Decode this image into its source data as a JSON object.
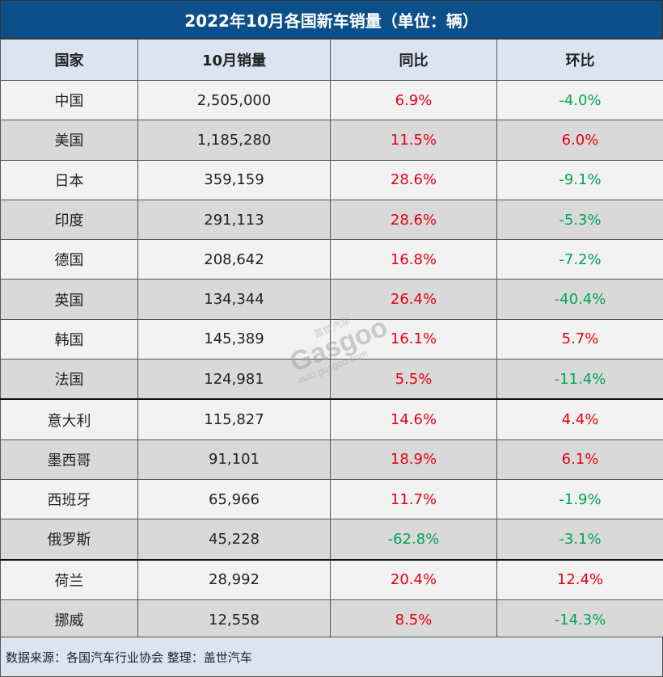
{
  "title": "2022年10月各国新车销量（单位：辆）",
  "footer": "数据来源：各国汽车行业协会 整理：盖世汽车",
  "watermark": {
    "cn": "盖世汽车",
    "logo": "Gasgoo",
    "url": "auto.gasgoo.com"
  },
  "colors": {
    "header_bg": "#0b508a",
    "subheader_bg": "#dbe5f1",
    "positive": "#e60012",
    "negative": "#00a651",
    "row_light": "#f2f2f2",
    "row_dark": "#d9d9d9"
  },
  "chart_data": {
    "type": "table",
    "title": "2022年10月各国新车销量（单位：辆）",
    "columns": [
      "国家",
      "10月销量",
      "同比",
      "环比"
    ],
    "rows": [
      [
        "中国",
        "2,505,000",
        "6.9%",
        "-4.0%"
      ],
      [
        "美国",
        "1,185,280",
        "11.5%",
        "6.0%"
      ],
      [
        "日本",
        "359,159",
        "28.6%",
        "-9.1%"
      ],
      [
        "印度",
        "291,113",
        "28.6%",
        "-5.3%"
      ],
      [
        "德国",
        "208,642",
        "16.8%",
        "-7.2%"
      ],
      [
        "英国",
        "134,344",
        "26.4%",
        "-40.4%"
      ],
      [
        "韩国",
        "145,389",
        "16.1%",
        "5.7%"
      ],
      [
        "法国",
        "124,981",
        "5.5%",
        "-11.4%"
      ],
      [
        "意大利",
        "115,827",
        "14.6%",
        "4.4%"
      ],
      [
        "墨西哥",
        "91,101",
        "18.9%",
        "6.1%"
      ],
      [
        "西班牙",
        "65,966",
        "11.7%",
        "-1.9%"
      ],
      [
        "俄罗斯",
        "45,228",
        "-62.8%",
        "-3.1%"
      ],
      [
        "荷兰",
        "28,992",
        "20.4%",
        "12.4%"
      ],
      [
        "挪威",
        "12,558",
        "8.5%",
        "-14.3%"
      ]
    ]
  }
}
